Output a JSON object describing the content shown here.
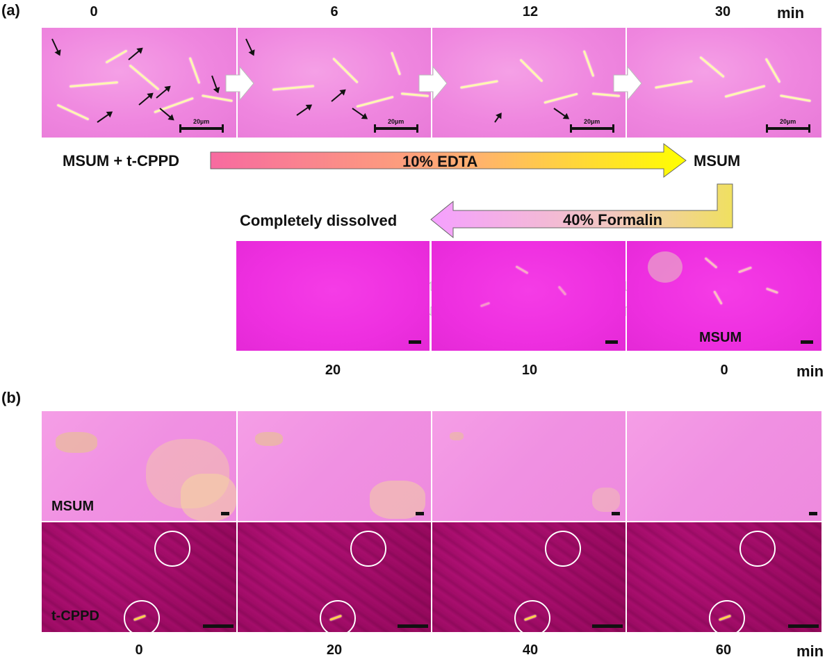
{
  "panel_a": {
    "label": "(a)",
    "top_times": [
      "0",
      "6",
      "12",
      "30"
    ],
    "top_unit": "min",
    "scale_label": "20µm",
    "start_label": "MSUM + t-CPPD",
    "edta_label": "10% EDTA",
    "end_label": "MSUM",
    "formalin_label": "40% Formalin",
    "dissolved_label": "Completely dissolved",
    "bottom_panel_label": "MSUM",
    "bottom_times": [
      "20",
      "10",
      "0"
    ],
    "bottom_unit": "min"
  },
  "panel_b": {
    "label": "(b)",
    "row1_label": "MSUM",
    "row2_label": "t-CPPD",
    "times": [
      "0",
      "20",
      "40",
      "60"
    ],
    "unit": "min"
  },
  "colors": {
    "edta_arrow_start": "#f76aa0",
    "edta_arrow_end": "#ffff00",
    "formalin_arrow_start": "#f5a0ff",
    "formalin_arrow_end": "#f0e060"
  }
}
